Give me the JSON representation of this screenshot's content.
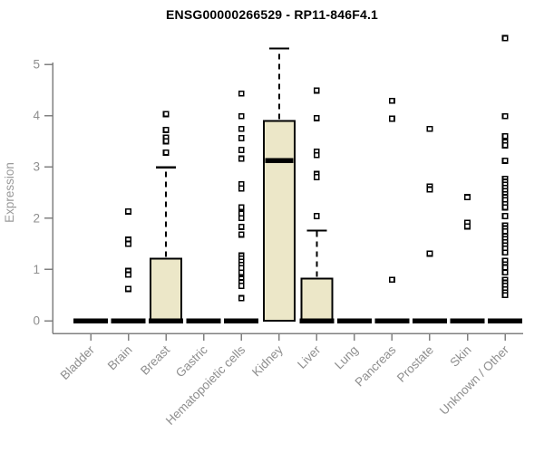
{
  "chart_data": {
    "type": "boxplot",
    "title": "ENSG00000266529 - RP11-846F4.1",
    "ylabel": "Expression",
    "xlabel": "",
    "ylim": [
      0,
      5.6
    ],
    "yticks": [
      0,
      1,
      2,
      3,
      4,
      5
    ],
    "grid": false,
    "legend": "none",
    "categories": [
      "Bladder",
      "Brain",
      "Breast",
      "Gastric",
      "Hematopoietic cells",
      "Kidney",
      "Liver",
      "Lung",
      "Pancreas",
      "Prostate",
      "Skin",
      "Unknown / Other"
    ],
    "series": [
      {
        "category": "Bladder",
        "q1": 0,
        "median": 0,
        "q3": 0,
        "whisker_low": 0,
        "whisker_high": 0,
        "outliers": []
      },
      {
        "category": "Brain",
        "q1": 0,
        "median": 0,
        "q3": 0,
        "whisker_low": 0,
        "whisker_high": 0,
        "outliers": [
          2.13,
          1.58,
          1.5,
          0.97,
          0.9,
          0.62
        ]
      },
      {
        "category": "Breast",
        "q1": 0,
        "median": 0,
        "q3": 1.21,
        "whisker_low": 0,
        "whisker_high": 2.99,
        "outliers": [
          4.03,
          3.72,
          3.57,
          3.5,
          3.28
        ]
      },
      {
        "category": "Gastric",
        "q1": 0,
        "median": 0,
        "q3": 0,
        "whisker_low": 0,
        "whisker_high": 0,
        "outliers": []
      },
      {
        "category": "Hematopoietic cells",
        "q1": 0,
        "median": 0,
        "q3": 0,
        "whisker_low": 0,
        "whisker_high": 0,
        "outliers": [
          4.43,
          3.99,
          3.74,
          3.56,
          3.33,
          3.16,
          2.66,
          2.58,
          2.21,
          2.09,
          2.0,
          1.83,
          1.68,
          1.27,
          1.21,
          1.15,
          1.09,
          1.03,
          0.94,
          0.82,
          0.75,
          0.68,
          0.44
        ]
      },
      {
        "category": "Kidney",
        "q1": 0,
        "median": 3.12,
        "q3": 3.9,
        "whisker_low": 0,
        "whisker_high": 5.31,
        "outliers": []
      },
      {
        "category": "Liver",
        "q1": 0,
        "median": 0,
        "q3": 0.82,
        "whisker_low": 0,
        "whisker_high": 1.76,
        "outliers": [
          4.49,
          3.95,
          3.3,
          3.23,
          2.86,
          2.8,
          2.04
        ]
      },
      {
        "category": "Lung",
        "q1": 0,
        "median": 0,
        "q3": 0,
        "whisker_low": 0,
        "whisker_high": 0,
        "outliers": []
      },
      {
        "category": "Pancreas",
        "q1": 0,
        "median": 0,
        "q3": 0,
        "whisker_low": 0,
        "whisker_high": 0,
        "outliers": [
          4.29,
          3.94,
          0.8
        ]
      },
      {
        "category": "Prostate",
        "q1": 0,
        "median": 0,
        "q3": 0,
        "whisker_low": 0,
        "whisker_high": 0,
        "outliers": [
          3.74,
          2.62,
          2.56,
          1.31
        ]
      },
      {
        "category": "Skin",
        "q1": 0,
        "median": 0,
        "q3": 0,
        "whisker_low": 0,
        "whisker_high": 0,
        "outliers": [
          2.41,
          1.91,
          1.84
        ]
      },
      {
        "category": "Unknown / Other",
        "q1": 0,
        "median": 0,
        "q3": 0,
        "whisker_low": 0,
        "whisker_high": 0,
        "outliers": [
          5.51,
          3.99,
          3.6,
          3.48,
          3.42,
          3.12,
          2.77,
          2.71,
          2.65,
          2.59,
          2.53,
          2.47,
          2.41,
          2.35,
          2.27,
          2.21,
          2.04,
          1.86,
          1.8,
          1.74,
          1.65,
          1.59,
          1.53,
          1.47,
          1.41,
          1.33,
          1.17,
          1.1,
          1.04,
          0.94,
          0.8,
          0.74,
          0.68,
          0.61,
          0.55,
          0.5
        ]
      }
    ],
    "colors": {
      "box_fill": "#ece7c8",
      "box_stroke": "#000000",
      "median": "#000000",
      "whisker": "#000000",
      "outlier_stroke": "#000000",
      "axis": "#818181",
      "tick_label": "#8e8e8e",
      "axis_label": "#9a9a9a",
      "title": "#000000",
      "background": "#ffffff"
    }
  }
}
